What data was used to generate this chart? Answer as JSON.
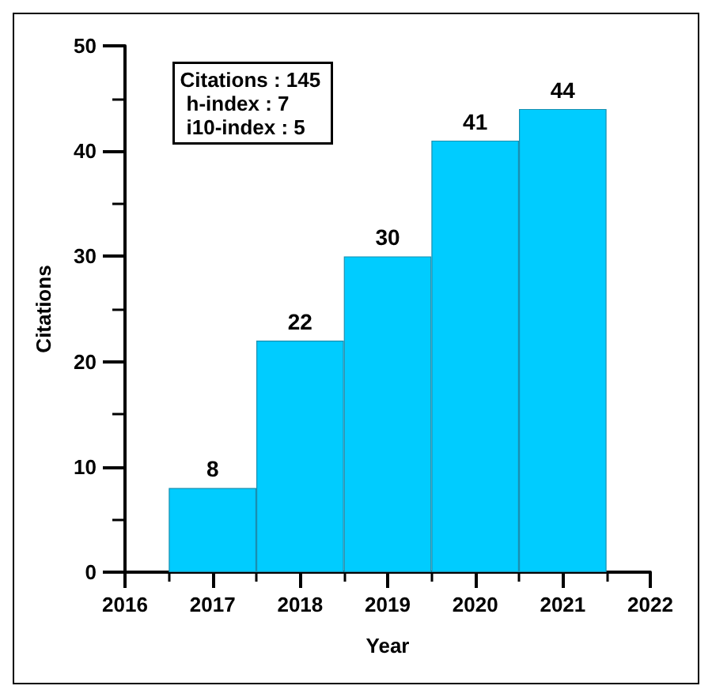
{
  "chart_data": {
    "type": "bar",
    "xlabel": "Year",
    "ylabel": "Citations",
    "x": [
      2017,
      2018,
      2019,
      2020,
      2021
    ],
    "values": [
      8,
      22,
      30,
      41,
      44
    ],
    "color": "#00ccff",
    "xlim": [
      2016,
      2022
    ],
    "xticks": [
      2016,
      2017,
      2018,
      2019,
      2020,
      2021,
      2022
    ],
    "ylim": [
      0,
      50
    ],
    "yticks": [
      0,
      10,
      20,
      30,
      40,
      50
    ],
    "data_labels": true,
    "grid": false,
    "annotations": [
      "Citations : 145",
      "h-index : 7",
      "i10-index : 5"
    ]
  }
}
